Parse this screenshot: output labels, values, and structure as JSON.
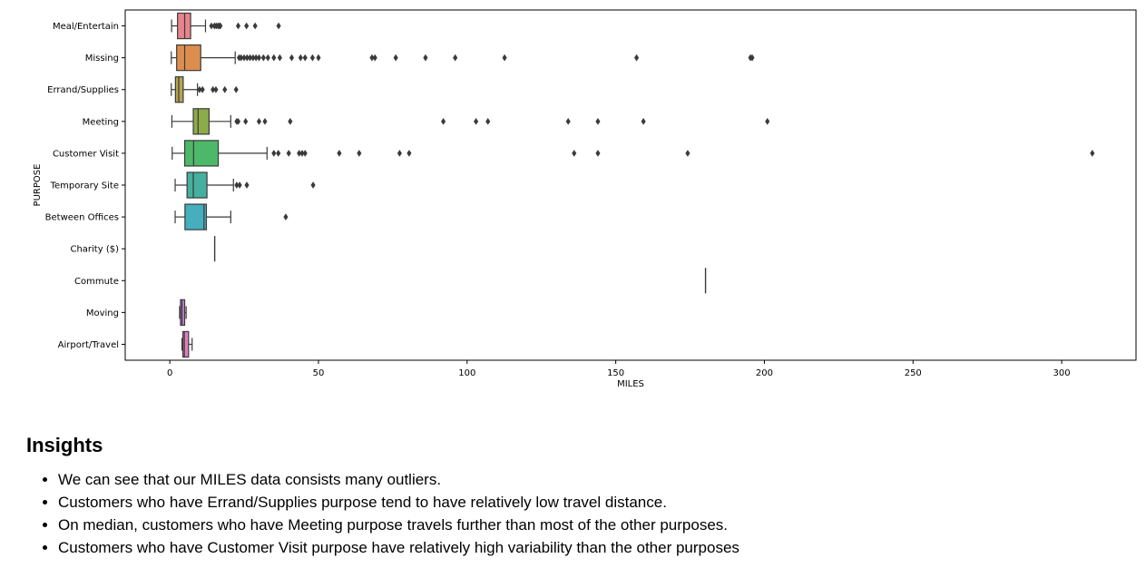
{
  "chart_data": {
    "type": "boxplot",
    "orientation": "horizontal",
    "xlabel": "MILES",
    "ylabel": "PURPOSE",
    "xlim": [
      -15,
      325
    ],
    "xticks": [
      0,
      50,
      100,
      150,
      200,
      250,
      300
    ],
    "xtick_labels": [
      "0",
      "50",
      "100",
      "150",
      "200",
      "250",
      "300"
    ],
    "grid": false,
    "categories": [
      "Meal/Entertain",
      "Missing",
      "Errand/Supplies",
      "Meeting",
      "Customer Visit",
      "Temporary Site",
      "Between Offices",
      "Charity ($)",
      "Commute",
      "Moving",
      "Airport/Travel"
    ],
    "boxes": [
      {
        "category": "Meal/Entertain",
        "whisker_low": 0.6,
        "q1": 2.6,
        "median": 5.0,
        "q3": 7.0,
        "whisker_high": 12.0,
        "outliers": [
          14.0,
          15.0,
          15.6,
          16.2,
          16.7,
          17.0,
          23.0,
          25.8,
          28.7,
          36.6
        ],
        "color": "#e8848c"
      },
      {
        "category": "Missing",
        "whisker_low": 0.5,
        "q1": 2.3,
        "median": 5.0,
        "q3": 10.4,
        "whisker_high": 22.0,
        "outliers": [
          23.3,
          24.0,
          25.0,
          26.0,
          27.0,
          28.0,
          29.0,
          30.0,
          31.5,
          33.0,
          35.0,
          37.0,
          41.0,
          44.0,
          45.5,
          48.0,
          50.0,
          68.0,
          69.0,
          76.0,
          86.0,
          96.0,
          112.6,
          157.0,
          195.3,
          195.9
        ],
        "color": "#dd8e4f"
      },
      {
        "category": "Errand/Supplies",
        "whisker_low": 0.5,
        "q1": 1.9,
        "median": 3.0,
        "q3": 4.5,
        "whisker_high": 9.3,
        "outliers": [
          10.0,
          11.0,
          14.5,
          15.5,
          18.5,
          22.3
        ],
        "color": "#b5a551"
      },
      {
        "category": "Meeting",
        "whisker_low": 0.7,
        "q1": 7.9,
        "median": 9.5,
        "q3": 13.2,
        "whisker_high": 20.5,
        "outliers": [
          22.5,
          23.0,
          25.5,
          30.0,
          32.0,
          40.5,
          92.0,
          103.0,
          107.0,
          134.0,
          144.0,
          159.3,
          201.0
        ],
        "color": "#8eab4a"
      },
      {
        "category": "Customer Visit",
        "whisker_low": 0.8,
        "q1": 5.0,
        "median": 8.0,
        "q3": 16.3,
        "whisker_high": 32.7,
        "outliers": [
          35.0,
          36.5,
          40.0,
          43.5,
          44.5,
          45.5,
          57.0,
          63.7,
          77.3,
          80.5,
          136.0,
          144.0,
          174.2,
          310.3
        ],
        "color": "#4db868"
      },
      {
        "category": "Temporary Site",
        "whisker_low": 1.8,
        "q1": 5.8,
        "median": 7.9,
        "q3": 12.5,
        "whisker_high": 21.4,
        "outliers": [
          22.5,
          23.5,
          25.9,
          48.2
        ],
        "color": "#44b09d"
      },
      {
        "category": "Between Offices",
        "whisker_low": 1.8,
        "q1": 5.1,
        "median": 11.5,
        "q3": 12.3,
        "whisker_high": 20.5,
        "outliers": [
          39.0
        ],
        "color": "#46aebd"
      },
      {
        "category": "Charity ($)",
        "whisker_low": 15.1,
        "q1": 15.1,
        "median": 15.1,
        "q3": 15.1,
        "whisker_high": 15.1,
        "outliers": [],
        "color": "#6c9de0"
      },
      {
        "category": "Commute",
        "whisker_low": 180.2,
        "q1": 180.2,
        "median": 180.2,
        "q3": 180.2,
        "whisker_high": 180.2,
        "outliers": [],
        "color": "#9c8ed8"
      },
      {
        "category": "Moving",
        "whisker_low": 3.3,
        "q1": 3.6,
        "median": 4.1,
        "q3": 5.0,
        "whisker_high": 5.5,
        "outliers": [],
        "color": "#c684d6"
      },
      {
        "category": "Airport/Travel",
        "whisker_low": 4.1,
        "q1": 4.4,
        "median": 4.9,
        "q3": 6.3,
        "whisker_high": 7.5,
        "outliers": [],
        "color": "#e27fbd"
      }
    ]
  },
  "insights": {
    "heading": "Insights",
    "items": [
      "We can see that our MILES data consists many outliers.",
      "Customers who have Errand/Supplies purpose tend to have relatively low travel distance.",
      "On median, customers who have Meeting purpose travels further than most of the other purposes.",
      "Customers who have Customer Visit purpose have relatively high variability than the other purposes"
    ]
  }
}
